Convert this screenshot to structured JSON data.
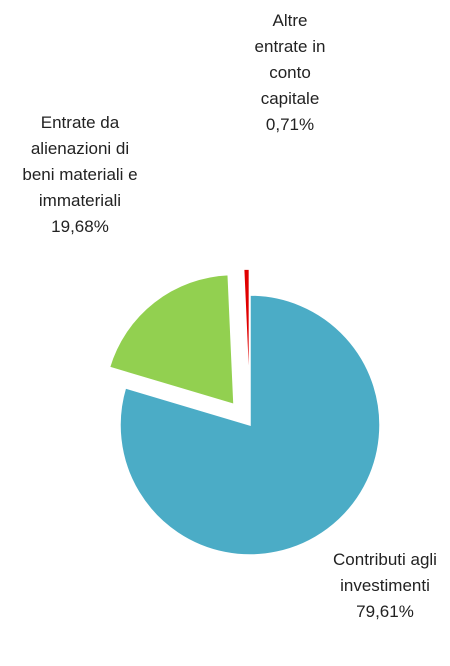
{
  "chart_data": {
    "type": "pie",
    "categories": [
      "Contributi agli investimenti",
      "Entrate da alienazioni di beni materiali e immateriali",
      "Altre entrate in conto capitale"
    ],
    "values": [
      79.61,
      19.68,
      0.71
    ],
    "value_labels": [
      "79,61%",
      "19,68%",
      "0,71%"
    ],
    "colors": [
      "#4bacc6",
      "#92d050",
      "#e00000"
    ],
    "exploded": [
      false,
      true,
      true
    ]
  }
}
